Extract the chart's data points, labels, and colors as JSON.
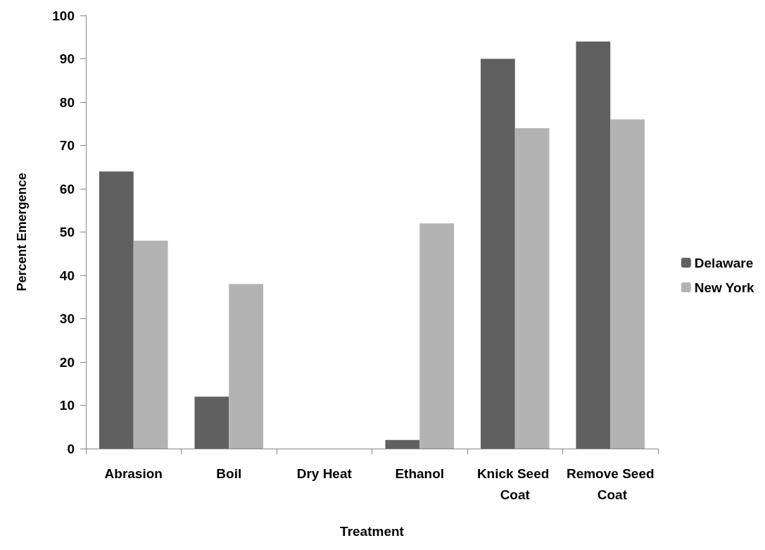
{
  "chart_data": {
    "type": "bar",
    "xlabel": "Treatment",
    "ylabel": "Percent Emergence",
    "categories": [
      "Abrasion",
      "Boil",
      "Dry Heat",
      "Ethanol",
      "Knick Seed Coat",
      "Remove Seed Coat"
    ],
    "series": [
      {
        "name": "Delaware",
        "color": "#606060",
        "values": [
          64,
          12,
          0,
          2,
          90,
          94
        ]
      },
      {
        "name": "New York",
        "color": "#b3b3b3",
        "values": [
          48,
          38,
          0,
          52,
          74,
          76
        ]
      }
    ],
    "ylim": [
      0,
      100
    ],
    "yticks": [
      0,
      10,
      20,
      30,
      40,
      50,
      60,
      70,
      80,
      90,
      100
    ],
    "grid": false,
    "legend": "right"
  }
}
